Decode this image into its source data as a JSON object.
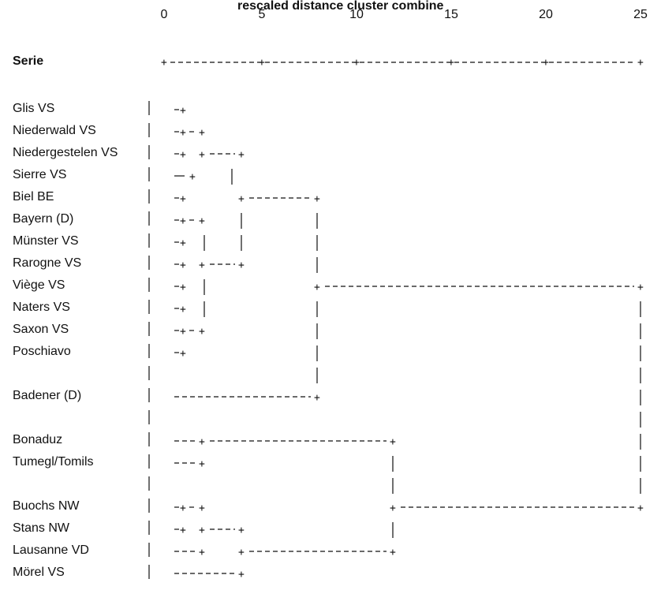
{
  "header": {
    "title": "rescaled distance cluster combine",
    "serie_label": "Serie",
    "ticks": [
      "0",
      "5",
      "10",
      "15",
      "20",
      "25"
    ]
  },
  "rows": [
    "Glis VS",
    "Niederwald VS",
    "Niedergestelen VS",
    "Sierre VS",
    "Biel BE",
    "Bayern (D)",
    "Münster VS",
    "Rarogne VS",
    "Viège VS",
    "Naters VS",
    "Saxon VS",
    "Poschiavo",
    "Badener (D)",
    "Bonaduz",
    "Tumegl/Tomils",
    "Buochs NW",
    "Stans NW",
    "Lausanne VD",
    "Mörel VS"
  ],
  "chart_data": {
    "type": "dendrogram",
    "title": "rescaled distance cluster combine",
    "xlabel": "",
    "xlim": [
      0,
      25
    ],
    "ticks": [
      0,
      5,
      10,
      15,
      20,
      25
    ],
    "leaves": [
      "Glis VS",
      "Niederwald VS",
      "Niedergestelen VS",
      "Sierre VS",
      "Biel BE",
      "Bayern (D)",
      "Münster VS",
      "Rarogne VS",
      "Viège VS",
      "Naters VS",
      "Saxon VS",
      "Poschiavo",
      "Badener (D)",
      "Bonaduz",
      "Tumegl/Tomils",
      "Buochs NW",
      "Stans NW",
      "Lausanne VD",
      "Mörel VS"
    ],
    "merges_approx_distance": [
      {
        "clusters": [
          "Glis VS",
          "Niederwald VS"
        ],
        "distance": 1
      },
      {
        "clusters": [
          "Niedergestelen VS",
          "Sierre VS"
        ],
        "distance": 1
      },
      {
        "clusters": [
          "Glis VS + Niederwald VS",
          "Niedergestelen VS + Sierre VS"
        ],
        "distance": 2
      },
      {
        "clusters": [
          "Biel BE",
          "Bayern (D)"
        ],
        "distance": 1
      },
      {
        "clusters": [
          "Münster VS",
          "Rarogne VS"
        ],
        "distance": 1
      },
      {
        "clusters": [
          "Viège VS",
          "Naters VS"
        ],
        "distance": 1
      },
      {
        "clusters": [
          "Saxon VS",
          "Poschiavo"
        ],
        "distance": 1
      },
      {
        "clusters": [
          "group 1-4",
          "group 5-12"
        ],
        "distance": 4
      },
      {
        "clusters": [
          "group 1-12",
          "Badener (D)"
        ],
        "distance": 8
      },
      {
        "clusters": [
          "Bonaduz",
          "Tumegl/Tomils"
        ],
        "distance": 2
      },
      {
        "clusters": [
          "Buochs NW",
          "Stans NW"
        ],
        "distance": 2
      },
      {
        "clusters": [
          "Lausanne VD",
          "Mörel VS"
        ],
        "distance": 4
      },
      {
        "clusters": [
          "group 13-14",
          "group 15-18"
        ],
        "distance": 12
      },
      {
        "clusters": [
          "group 1-13",
          "group 14-19"
        ],
        "distance": 25
      }
    ]
  }
}
